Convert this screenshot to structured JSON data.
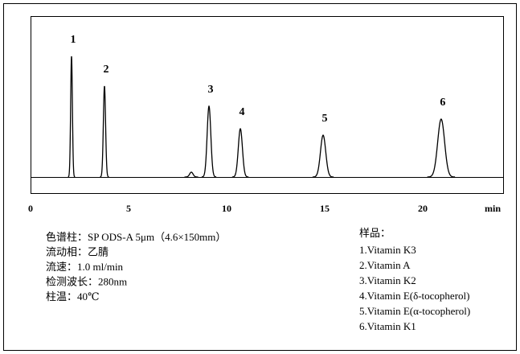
{
  "chart_data": {
    "type": "line",
    "x_label": "min",
    "color": "#000000",
    "categories": [
      "1",
      "2",
      null,
      "3",
      "4",
      "5",
      "6"
    ],
    "x": [
      2.09,
      3.77,
      8.2,
      9.1,
      10.7,
      14.92,
      20.94
    ],
    "values": [
      150,
      113,
      6,
      88,
      60,
      52,
      72
    ],
    "xlim": [
      0,
      24.1
    ],
    "xticks": [
      0,
      5,
      10,
      15,
      20
    ],
    "ylim": [
      -20,
      200
    ]
  },
  "conditions": [
    "色谱柱：SP ODS-A 5μm（4.6×150mm）",
    "流动相：乙腈",
    "流速：1.0 ml/min",
    "检测波长：280nm",
    "柱温：40℃"
  ],
  "samples": {
    "title": "样品：",
    "items": [
      "1.Vitamin K3",
      "2.Vitamin A",
      "3.Vitamin K2",
      "4.Vitamin E(δ-tocopherol)",
      "5.Vitamin E(α-tocopherol)",
      "6.Vitamin K1"
    ]
  }
}
